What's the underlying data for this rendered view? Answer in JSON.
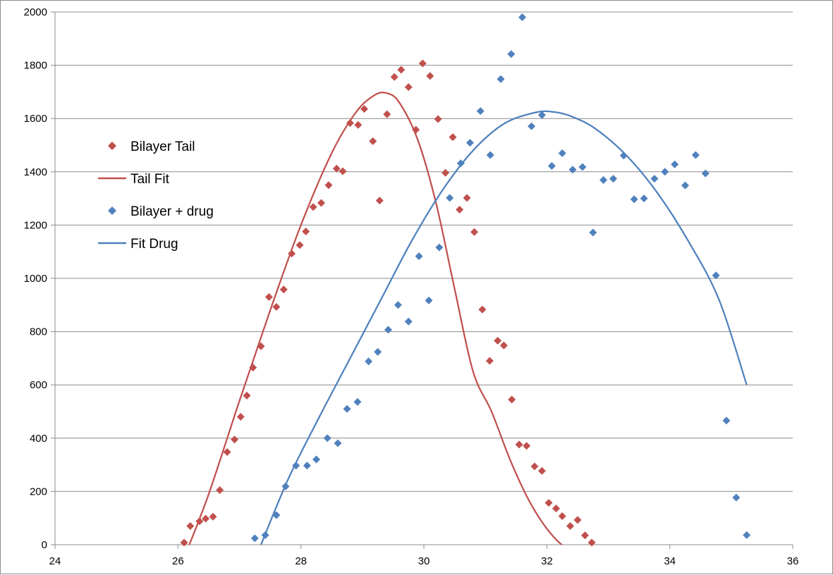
{
  "chart_data": {
    "type": "scatter",
    "title": "",
    "xlabel": "",
    "ylabel": "",
    "xlim": [
      24,
      36
    ],
    "ylim": [
      0,
      2000
    ],
    "x_ticks": [
      24,
      26,
      28,
      30,
      32,
      34,
      36
    ],
    "y_ticks": [
      0,
      200,
      400,
      600,
      800,
      1000,
      1200,
      1400,
      1600,
      1800,
      2000
    ],
    "grid": "horizontal",
    "legend_position": "left",
    "legend": [
      {
        "label": "Bilayer Tail",
        "kind": "marker",
        "color": "#c0504d"
      },
      {
        "label": "Tail Fit",
        "kind": "line",
        "color": "#c0504d"
      },
      {
        "label": "Bilayer + drug",
        "kind": "marker",
        "color": "#4f81bd"
      },
      {
        "label": "Fit Drug",
        "kind": "line",
        "color": "#4f81bd"
      }
    ],
    "series": [
      {
        "name": "Bilayer Tail",
        "kind": "scatter",
        "color": "#c0504d",
        "points": [
          [
            26.1,
            8
          ],
          [
            26.2,
            70
          ],
          [
            26.35,
            88
          ],
          [
            26.45,
            98
          ],
          [
            26.57,
            105
          ],
          [
            26.68,
            205
          ],
          [
            26.8,
            348
          ],
          [
            26.92,
            395
          ],
          [
            27.02,
            480
          ],
          [
            27.12,
            560
          ],
          [
            27.22,
            665
          ],
          [
            27.35,
            745
          ],
          [
            27.48,
            930
          ],
          [
            27.6,
            893
          ],
          [
            27.72,
            958
          ],
          [
            27.85,
            1093
          ],
          [
            27.98,
            1125
          ],
          [
            28.08,
            1176
          ],
          [
            28.2,
            1268
          ],
          [
            28.33,
            1283
          ],
          [
            28.45,
            1350
          ],
          [
            28.58,
            1412
          ],
          [
            28.68,
            1402
          ],
          [
            28.8,
            1583
          ],
          [
            28.93,
            1576
          ],
          [
            29.03,
            1636
          ],
          [
            29.17,
            1515
          ],
          [
            29.28,
            1292
          ],
          [
            29.4,
            1616
          ],
          [
            29.52,
            1756
          ],
          [
            29.63,
            1783
          ],
          [
            29.75,
            1718
          ],
          [
            29.87,
            1558
          ],
          [
            29.98,
            1807
          ],
          [
            30.1,
            1760
          ],
          [
            30.23,
            1598
          ],
          [
            30.35,
            1396
          ],
          [
            30.47,
            1530
          ],
          [
            30.58,
            1258
          ],
          [
            30.7,
            1302
          ],
          [
            30.82,
            1174
          ],
          [
            30.95,
            883
          ],
          [
            31.07,
            690
          ],
          [
            31.2,
            766
          ],
          [
            31.3,
            748
          ],
          [
            31.43,
            545
          ],
          [
            31.55,
            376
          ],
          [
            31.67,
            371
          ],
          [
            31.8,
            294
          ],
          [
            31.92,
            277
          ],
          [
            32.03,
            157
          ],
          [
            32.15,
            136
          ],
          [
            32.25,
            107
          ],
          [
            32.38,
            70
          ],
          [
            32.5,
            93
          ],
          [
            32.62,
            35
          ],
          [
            32.73,
            8
          ]
        ]
      },
      {
        "name": "Tail Fit",
        "kind": "line",
        "color": "#c0504d",
        "points": [
          [
            26.15,
            -20
          ],
          [
            26.5,
            190
          ],
          [
            27.0,
            540
          ],
          [
            27.5,
            880
          ],
          [
            28.0,
            1200
          ],
          [
            28.5,
            1470
          ],
          [
            28.9,
            1625
          ],
          [
            29.2,
            1688
          ],
          [
            29.4,
            1695
          ],
          [
            29.6,
            1660
          ],
          [
            29.9,
            1520
          ],
          [
            30.2,
            1280
          ],
          [
            30.5,
            960
          ],
          [
            30.8,
            650
          ],
          [
            31.1,
            500
          ],
          [
            31.4,
            320
          ],
          [
            31.7,
            170
          ],
          [
            32.0,
            60
          ],
          [
            32.3,
            -10
          ],
          [
            32.6,
            -30
          ]
        ]
      },
      {
        "name": "Bilayer + drug",
        "kind": "scatter",
        "color": "#4f81bd",
        "points": [
          [
            27.25,
            24
          ],
          [
            27.42,
            36
          ],
          [
            27.6,
            111
          ],
          [
            27.75,
            219
          ],
          [
            27.92,
            297
          ],
          [
            28.1,
            297
          ],
          [
            28.25,
            320
          ],
          [
            28.43,
            400
          ],
          [
            28.6,
            381
          ],
          [
            28.75,
            510
          ],
          [
            28.92,
            536
          ],
          [
            29.1,
            688
          ],
          [
            29.25,
            724
          ],
          [
            29.42,
            807
          ],
          [
            29.58,
            900
          ],
          [
            29.75,
            838
          ],
          [
            29.92,
            1083
          ],
          [
            30.08,
            917
          ],
          [
            30.25,
            1116
          ],
          [
            30.42,
            1302
          ],
          [
            30.6,
            1432
          ],
          [
            30.75,
            1509
          ],
          [
            30.92,
            1628
          ],
          [
            31.08,
            1463
          ],
          [
            31.25,
            1748
          ],
          [
            31.42,
            1842
          ],
          [
            31.6,
            1980
          ],
          [
            31.75,
            1571
          ],
          [
            31.92,
            1613
          ],
          [
            32.08,
            1422
          ],
          [
            32.25,
            1470
          ],
          [
            32.42,
            1408
          ],
          [
            32.58,
            1418
          ],
          [
            32.75,
            1172
          ],
          [
            32.92,
            1369
          ],
          [
            33.08,
            1374
          ],
          [
            33.25,
            1461
          ],
          [
            33.42,
            1297
          ],
          [
            33.58,
            1300
          ],
          [
            33.75,
            1374
          ],
          [
            33.92,
            1400
          ],
          [
            34.08,
            1428
          ],
          [
            34.25,
            1349
          ],
          [
            34.42,
            1463
          ],
          [
            34.58,
            1394
          ],
          [
            34.75,
            1011
          ],
          [
            34.92,
            466
          ],
          [
            35.08,
            177
          ],
          [
            35.25,
            36
          ]
        ]
      },
      {
        "name": "Fit Drug",
        "kind": "line",
        "color": "#4f81bd",
        "points": [
          [
            27.35,
            0
          ],
          [
            27.8,
            250
          ],
          [
            28.3,
            480
          ],
          [
            28.8,
            700
          ],
          [
            29.3,
            920
          ],
          [
            29.8,
            1140
          ],
          [
            30.3,
            1330
          ],
          [
            30.8,
            1480
          ],
          [
            31.3,
            1580
          ],
          [
            31.8,
            1622
          ],
          [
            32.1,
            1625
          ],
          [
            32.4,
            1608
          ],
          [
            32.8,
            1560
          ],
          [
            33.3,
            1460
          ],
          [
            33.8,
            1320
          ],
          [
            34.3,
            1140
          ],
          [
            34.8,
            920
          ],
          [
            35.25,
            600
          ]
        ]
      }
    ]
  }
}
